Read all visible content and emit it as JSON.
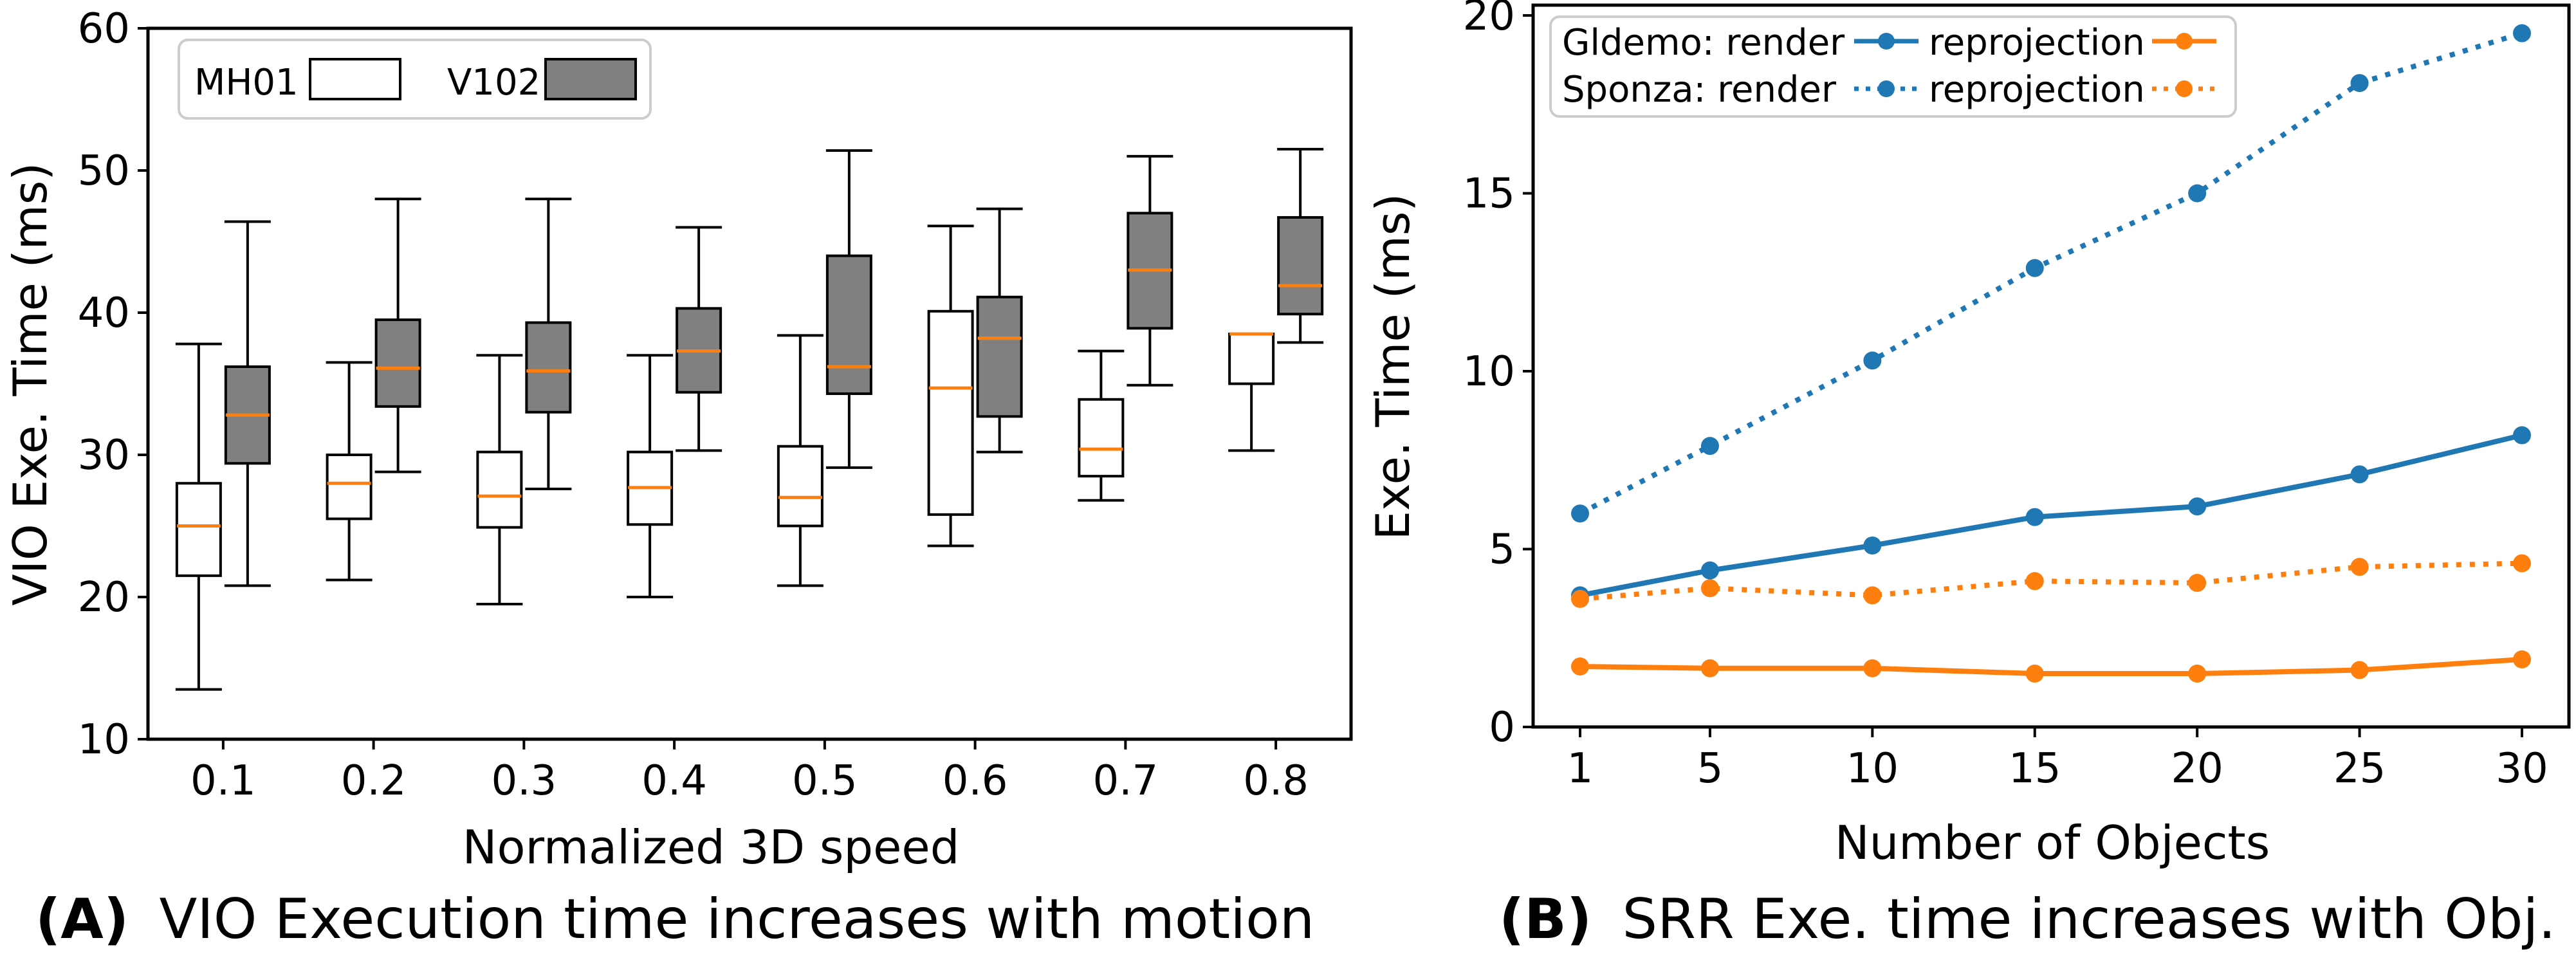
{
  "panels": {
    "a": {
      "prefix": "(A)",
      "caption": "VIO Execution time increases with motion"
    },
    "b": {
      "prefix": "(B)",
      "caption": "SRR Exe. time increases with Obj."
    }
  },
  "chart_data": [
    {
      "type": "box",
      "xlabel": "Normalized 3D speed",
      "ylabel": "VIO Exe. Time (ms)",
      "ylim": [
        10,
        60
      ],
      "yticks": [
        10,
        20,
        30,
        40,
        50,
        60
      ],
      "categories": [
        "0.1",
        "0.2",
        "0.3",
        "0.4",
        "0.5",
        "0.6",
        "0.7",
        "0.8"
      ],
      "grid": false,
      "legend_position": "top-left",
      "series": [
        {
          "name": "MH01",
          "color": "#ffffff",
          "median_color": "#ff7f0e",
          "boxes": [
            {
              "whislo": 13.5,
              "q1": 21.5,
              "med": 25,
              "q3": 28,
              "whishi": 37.8
            },
            {
              "whislo": 21.2,
              "q1": 25.5,
              "med": 28,
              "q3": 30,
              "whishi": 36.5
            },
            {
              "whislo": 19.5,
              "q1": 24.9,
              "med": 27.1,
              "q3": 30.2,
              "whishi": 37
            },
            {
              "whislo": 20,
              "q1": 25.1,
              "med": 27.7,
              "q3": 30.2,
              "whishi": 37
            },
            {
              "whislo": 20.8,
              "q1": 25,
              "med": 27,
              "q3": 30.6,
              "whishi": 38.4
            },
            {
              "whislo": 23.6,
              "q1": 25.8,
              "med": 34.7,
              "q3": 40.1,
              "whishi": 46.1
            },
            {
              "whislo": 26.8,
              "q1": 28.5,
              "med": 30.4,
              "q3": 33.9,
              "whishi": 37.3
            },
            {
              "whislo": 30.3,
              "q1": 35,
              "med": 38.5,
              "q3": 38.5,
              "whishi": 38.5
            }
          ]
        },
        {
          "name": "V102",
          "color": "#808080",
          "median_color": "#ff7f0e",
          "boxes": [
            {
              "whislo": 20.8,
              "q1": 29.4,
              "med": 32.8,
              "q3": 36.2,
              "whishi": 46.4
            },
            {
              "whislo": 28.8,
              "q1": 33.4,
              "med": 36.1,
              "q3": 39.5,
              "whishi": 48
            },
            {
              "whislo": 27.6,
              "q1": 33,
              "med": 35.9,
              "q3": 39.3,
              "whishi": 48
            },
            {
              "whislo": 30.3,
              "q1": 34.4,
              "med": 37.3,
              "q3": 40.3,
              "whishi": 46
            },
            {
              "whislo": 29.1,
              "q1": 34.3,
              "med": 36.2,
              "q3": 44,
              "whishi": 51.4
            },
            {
              "whislo": 30.2,
              "q1": 32.7,
              "med": 38.2,
              "q3": 41.1,
              "whishi": 47.3
            },
            {
              "whislo": 34.9,
              "q1": 38.9,
              "med": 43,
              "q3": 47,
              "whishi": 51
            },
            {
              "whislo": 37.9,
              "q1": 39.9,
              "med": 41.9,
              "q3": 46.7,
              "whishi": 51.5
            }
          ]
        }
      ]
    },
    {
      "type": "line",
      "xlabel": "Number of Objects",
      "ylabel": "Exe. Time (ms)",
      "ylim": [
        0,
        20
      ],
      "yticks": [
        0,
        5,
        10,
        15,
        20
      ],
      "x": [
        1,
        5,
        10,
        15,
        20,
        25,
        30
      ],
      "grid": false,
      "legend_position": "top-left",
      "legend_rows": [
        {
          "label": "Gldemo: render",
          "series": 0,
          "second_label": "reprojection",
          "second_series": 1
        },
        {
          "label": "Sponza: render",
          "series": 2,
          "second_label": "reprojection",
          "second_series": 3
        }
      ],
      "series": [
        {
          "scene": "Gldemo",
          "name": "render",
          "color": "#1f77b4",
          "dash": "solid",
          "values": [
            3.7,
            4.4,
            5.1,
            5.9,
            6.2,
            7.1,
            8.2
          ]
        },
        {
          "scene": "Gldemo",
          "name": "reprojection",
          "color": "#ff7f0e",
          "dash": "solid",
          "values": [
            1.7,
            1.65,
            1.65,
            1.5,
            1.5,
            1.6,
            1.9
          ]
        },
        {
          "scene": "Sponza",
          "name": "render",
          "color": "#1f77b4",
          "dash": "dotted",
          "values": [
            6,
            7.9,
            10.3,
            12.9,
            15,
            18.1,
            19.5
          ]
        },
        {
          "scene": "Sponza",
          "name": "reprojection",
          "color": "#ff7f0e",
          "dash": "dotted",
          "values": [
            3.6,
            3.9,
            3.7,
            4.1,
            4.05,
            4.5,
            4.6
          ]
        }
      ]
    }
  ]
}
